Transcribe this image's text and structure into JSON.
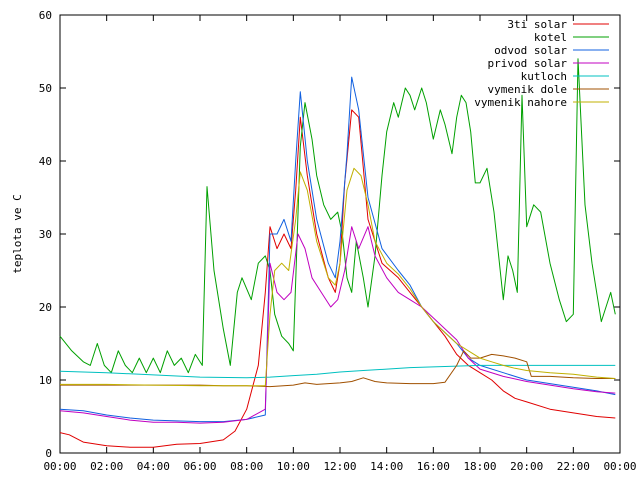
{
  "chart_data": {
    "type": "line",
    "title": "",
    "xlabel": "",
    "ylabel": "teplota ve C",
    "xlim": [
      0,
      24
    ],
    "ylim": [
      0,
      60
    ],
    "grid": false,
    "legend_position": "top-right",
    "x_ticks": [
      "00:00",
      "02:00",
      "04:00",
      "06:00",
      "08:00",
      "10:00",
      "12:00",
      "14:00",
      "16:00",
      "18:00",
      "20:00",
      "22:00",
      "00:00"
    ],
    "y_ticks": [
      "0",
      "10",
      "20",
      "30",
      "40",
      "50",
      "60"
    ],
    "series": [
      {
        "name": "3ti solar",
        "color": "#e00000",
        "points": [
          [
            0,
            2.8
          ],
          [
            0.4,
            2.5
          ],
          [
            1,
            1.5
          ],
          [
            2,
            1
          ],
          [
            3,
            0.8
          ],
          [
            4,
            0.8
          ],
          [
            5,
            1.2
          ],
          [
            6,
            1.3
          ],
          [
            7,
            1.8
          ],
          [
            7.5,
            3
          ],
          [
            8,
            6
          ],
          [
            8.5,
            12
          ],
          [
            8.8,
            22
          ],
          [
            9,
            31
          ],
          [
            9.3,
            28
          ],
          [
            9.6,
            30
          ],
          [
            9.9,
            28
          ],
          [
            10.1,
            36
          ],
          [
            10.3,
            46
          ],
          [
            10.6,
            38
          ],
          [
            11,
            30
          ],
          [
            11.5,
            24
          ],
          [
            11.8,
            22
          ],
          [
            12,
            26
          ],
          [
            12.2,
            37
          ],
          [
            12.5,
            47
          ],
          [
            12.8,
            46
          ],
          [
            13.2,
            32
          ],
          [
            13.8,
            26
          ],
          [
            14.5,
            24
          ],
          [
            15,
            22
          ],
          [
            15.5,
            20
          ],
          [
            16,
            18
          ],
          [
            16.5,
            16
          ],
          [
            17,
            13.5
          ],
          [
            17.5,
            12
          ],
          [
            18,
            11
          ],
          [
            18.5,
            10
          ],
          [
            19,
            8.5
          ],
          [
            19.5,
            7.5
          ],
          [
            20,
            7
          ],
          [
            21,
            6
          ],
          [
            22,
            5.5
          ],
          [
            23,
            5
          ],
          [
            23.8,
            4.8
          ]
        ]
      },
      {
        "name": "kotel",
        "color": "#00a000",
        "points": [
          [
            0,
            16
          ],
          [
            0.5,
            14
          ],
          [
            1,
            12.5
          ],
          [
            1.3,
            12
          ],
          [
            1.6,
            15
          ],
          [
            1.9,
            12
          ],
          [
            2.2,
            11
          ],
          [
            2.5,
            14
          ],
          [
            2.8,
            12
          ],
          [
            3.1,
            11
          ],
          [
            3.4,
            13
          ],
          [
            3.7,
            11
          ],
          [
            4,
            13
          ],
          [
            4.3,
            11
          ],
          [
            4.6,
            14
          ],
          [
            4.9,
            12
          ],
          [
            5.2,
            13
          ],
          [
            5.5,
            11
          ],
          [
            5.8,
            13.5
          ],
          [
            6.1,
            12
          ],
          [
            6.3,
            36.5
          ],
          [
            6.6,
            25
          ],
          [
            7,
            17
          ],
          [
            7.3,
            12
          ],
          [
            7.6,
            22
          ],
          [
            7.8,
            24
          ],
          [
            8.2,
            21
          ],
          [
            8.5,
            26
          ],
          [
            8.8,
            27
          ],
          [
            9,
            25
          ],
          [
            9.2,
            19
          ],
          [
            9.5,
            16
          ],
          [
            9.8,
            15
          ],
          [
            10,
            14
          ],
          [
            10.3,
            42
          ],
          [
            10.5,
            48
          ],
          [
            10.8,
            43
          ],
          [
            11,
            38
          ],
          [
            11.3,
            34
          ],
          [
            11.6,
            32
          ],
          [
            11.9,
            33
          ],
          [
            12.1,
            30
          ],
          [
            12.3,
            24
          ],
          [
            12.5,
            22
          ],
          [
            12.7,
            29
          ],
          [
            13,
            24
          ],
          [
            13.2,
            20
          ],
          [
            13.5,
            27
          ],
          [
            13.8,
            38
          ],
          [
            14,
            44
          ],
          [
            14.3,
            48
          ],
          [
            14.5,
            46
          ],
          [
            14.8,
            50
          ],
          [
            15,
            49
          ],
          [
            15.2,
            47
          ],
          [
            15.5,
            50
          ],
          [
            15.7,
            48
          ],
          [
            16,
            43
          ],
          [
            16.3,
            47
          ],
          [
            16.5,
            45
          ],
          [
            16.8,
            41
          ],
          [
            17,
            46
          ],
          [
            17.2,
            49
          ],
          [
            17.4,
            48
          ],
          [
            17.6,
            44
          ],
          [
            17.8,
            37
          ],
          [
            18,
            37
          ],
          [
            18.3,
            39
          ],
          [
            18.6,
            33
          ],
          [
            19,
            21
          ],
          [
            19.2,
            27
          ],
          [
            19.4,
            25
          ],
          [
            19.6,
            22
          ],
          [
            19.8,
            49
          ],
          [
            20,
            31
          ],
          [
            20.3,
            34
          ],
          [
            20.6,
            33
          ],
          [
            21,
            26
          ],
          [
            21.4,
            21
          ],
          [
            21.7,
            18
          ],
          [
            22,
            19
          ],
          [
            22.2,
            54
          ],
          [
            22.5,
            34
          ],
          [
            22.8,
            26
          ],
          [
            23.2,
            18
          ],
          [
            23.6,
            22
          ],
          [
            23.8,
            19
          ]
        ]
      },
      {
        "name": "odvod solar",
        "color": "#1060e0",
        "points": [
          [
            0,
            6
          ],
          [
            1,
            5.8
          ],
          [
            2,
            5.2
          ],
          [
            3,
            4.8
          ],
          [
            4,
            4.5
          ],
          [
            5,
            4.4
          ],
          [
            6,
            4.3
          ],
          [
            7,
            4.3
          ],
          [
            8,
            4.6
          ],
          [
            8.8,
            5.2
          ],
          [
            9,
            30
          ],
          [
            9.3,
            30
          ],
          [
            9.6,
            32
          ],
          [
            9.9,
            29
          ],
          [
            10.1,
            40
          ],
          [
            10.3,
            49.5
          ],
          [
            10.6,
            40
          ],
          [
            11,
            32
          ],
          [
            11.5,
            26
          ],
          [
            11.8,
            24
          ],
          [
            12,
            29
          ],
          [
            12.3,
            41
          ],
          [
            12.5,
            51.5
          ],
          [
            12.8,
            47
          ],
          [
            13.2,
            35
          ],
          [
            13.8,
            28
          ],
          [
            14.5,
            25
          ],
          [
            15,
            23
          ],
          [
            15.5,
            20
          ],
          [
            16,
            18
          ],
          [
            16.5,
            16.5
          ],
          [
            17,
            15
          ],
          [
            17.5,
            13
          ],
          [
            18,
            12
          ],
          [
            19,
            11
          ],
          [
            20,
            10
          ],
          [
            21,
            9.5
          ],
          [
            22,
            9
          ],
          [
            23,
            8.5
          ],
          [
            23.8,
            8
          ]
        ]
      },
      {
        "name": "privod solar",
        "color": "#c000c0",
        "points": [
          [
            0,
            5.8
          ],
          [
            1,
            5.5
          ],
          [
            2,
            5
          ],
          [
            3,
            4.5
          ],
          [
            4,
            4.2
          ],
          [
            5,
            4.2
          ],
          [
            6,
            4.1
          ],
          [
            7,
            4.2
          ],
          [
            8,
            4.6
          ],
          [
            8.8,
            6
          ],
          [
            9,
            26
          ],
          [
            9.3,
            22
          ],
          [
            9.6,
            21
          ],
          [
            9.9,
            22
          ],
          [
            10.2,
            30
          ],
          [
            10.5,
            28
          ],
          [
            10.8,
            24
          ],
          [
            11.2,
            22
          ],
          [
            11.6,
            20
          ],
          [
            11.9,
            21
          ],
          [
            12.2,
            25
          ],
          [
            12.5,
            31
          ],
          [
            12.8,
            28
          ],
          [
            13.2,
            31
          ],
          [
            13.5,
            27
          ],
          [
            14,
            24
          ],
          [
            14.5,
            22
          ],
          [
            15,
            21
          ],
          [
            15.5,
            20
          ],
          [
            16,
            18.5
          ],
          [
            16.5,
            17
          ],
          [
            17,
            15.5
          ],
          [
            17.5,
            13
          ],
          [
            18,
            11.5
          ],
          [
            19,
            10.5
          ],
          [
            20,
            9.8
          ],
          [
            21,
            9.3
          ],
          [
            22,
            8.8
          ],
          [
            23,
            8.4
          ],
          [
            23.8,
            8.2
          ]
        ]
      },
      {
        "name": "kutloch",
        "color": "#00c0c0",
        "points": [
          [
            0,
            11.2
          ],
          [
            2,
            11
          ],
          [
            4,
            10.7
          ],
          [
            6,
            10.4
          ],
          [
            8,
            10.3
          ],
          [
            9,
            10.4
          ],
          [
            10,
            10.6
          ],
          [
            11,
            10.8
          ],
          [
            12,
            11.1
          ],
          [
            13,
            11.3
          ],
          [
            14,
            11.5
          ],
          [
            15,
            11.7
          ],
          [
            16,
            11.8
          ],
          [
            17,
            11.9
          ],
          [
            18,
            12
          ],
          [
            19,
            12
          ],
          [
            20,
            12
          ],
          [
            21,
            12
          ],
          [
            22,
            12
          ],
          [
            23,
            12
          ],
          [
            23.8,
            12
          ]
        ]
      },
      {
        "name": "vymenik dole",
        "color": "#a05000",
        "points": [
          [
            0,
            9.3
          ],
          [
            2,
            9.3
          ],
          [
            4,
            9.3
          ],
          [
            6,
            9.3
          ],
          [
            7,
            9.2
          ],
          [
            8,
            9.2
          ],
          [
            9,
            9.1
          ],
          [
            10,
            9.3
          ],
          [
            10.5,
            9.6
          ],
          [
            11,
            9.4
          ],
          [
            11.5,
            9.5
          ],
          [
            12,
            9.6
          ],
          [
            12.5,
            9.8
          ],
          [
            13,
            10.3
          ],
          [
            13.5,
            9.8
          ],
          [
            14,
            9.6
          ],
          [
            15,
            9.5
          ],
          [
            16,
            9.5
          ],
          [
            16.5,
            9.7
          ],
          [
            17,
            12
          ],
          [
            17.3,
            14
          ],
          [
            17.6,
            13
          ],
          [
            18,
            13
          ],
          [
            18.5,
            13.5
          ],
          [
            19,
            13.3
          ],
          [
            19.5,
            13
          ],
          [
            20,
            12.5
          ],
          [
            20.2,
            10.5
          ],
          [
            21,
            10.5
          ],
          [
            22,
            10.3
          ],
          [
            23,
            10.2
          ],
          [
            23.8,
            10.2
          ]
        ]
      },
      {
        "name": "vymenik nahore",
        "color": "#c0b000",
        "points": [
          [
            0,
            9.4
          ],
          [
            2,
            9.4
          ],
          [
            4,
            9.3
          ],
          [
            6,
            9.2
          ],
          [
            8,
            9.2
          ],
          [
            8.8,
            9.2
          ],
          [
            9,
            19
          ],
          [
            9.2,
            25
          ],
          [
            9.5,
            26
          ],
          [
            9.8,
            25
          ],
          [
            10.1,
            32
          ],
          [
            10.3,
            38.5
          ],
          [
            10.6,
            36
          ],
          [
            11,
            29
          ],
          [
            11.5,
            24
          ],
          [
            11.8,
            23
          ],
          [
            12,
            26
          ],
          [
            12.3,
            36
          ],
          [
            12.6,
            39
          ],
          [
            12.9,
            38
          ],
          [
            13.2,
            34
          ],
          [
            13.5,
            29
          ],
          [
            14,
            26
          ],
          [
            14.5,
            24.5
          ],
          [
            15,
            22.5
          ],
          [
            15.5,
            20
          ],
          [
            16,
            18
          ],
          [
            16.5,
            16.5
          ],
          [
            17,
            15
          ],
          [
            17.5,
            14
          ],
          [
            18,
            13
          ],
          [
            18.5,
            12.5
          ],
          [
            19,
            12
          ],
          [
            19.5,
            11.6
          ],
          [
            20,
            11.3
          ],
          [
            21,
            11
          ],
          [
            22,
            10.8
          ],
          [
            23,
            10.4
          ],
          [
            23.8,
            10.2
          ]
        ]
      }
    ]
  }
}
